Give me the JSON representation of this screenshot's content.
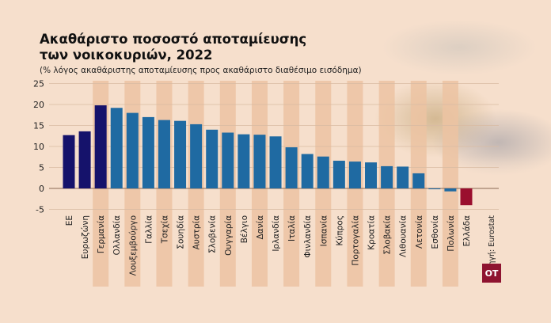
{
  "chart_data": {
    "type": "bar",
    "title": "Ακαθάριστο ποσοστό αποταμίευσης των νοικοκυριών, 2022",
    "title_lines": [
      "Ακαθάριστο ποσοστό αποταμίευσης",
      "των νοικοκυριών, 2022"
    ],
    "subtitle": "(% λόγος ακαθάριστης αποταμίευσης προς ακαθάριστο διαθέσιμο εισόδημα)",
    "xlabel": "",
    "ylabel": "",
    "ylim": [
      -5,
      25
    ],
    "yticks": [
      25,
      20,
      15,
      10,
      5,
      0,
      -5
    ],
    "grid": true,
    "categories": [
      "ΕΕ",
      "Ευρωζώνη",
      "Γερμανία",
      "Ολλανδία",
      "Λουξεμβούργο",
      "Γαλλία",
      "Τσεχία",
      "Σουηδία",
      "Αυστρία",
      "Σλοβενία",
      "Ουγγαρία",
      "Βέλγιο",
      "Δανία",
      "Ιρλανδία",
      "Ιταλία",
      "Φινλανδία",
      "Ισπανία",
      "Κύπρος",
      "Πορτογαλία",
      "Κροατία",
      "Σλοβακία",
      "Λιθουανία",
      "Λετονία",
      "Εσθονία",
      "Πολωνία",
      "Ελλάδα"
    ],
    "values": [
      12.7,
      13.6,
      19.8,
      19.2,
      18.0,
      17.0,
      16.3,
      16.1,
      15.3,
      14.0,
      13.3,
      12.9,
      12.8,
      12.4,
      9.8,
      8.2,
      7.6,
      6.6,
      6.4,
      6.2,
      5.3,
      5.2,
      3.6,
      -0.2,
      -0.7,
      -4.0
    ],
    "source": "Πηγή: Eurostat"
  },
  "colors": {
    "aggregate": "#15126b",
    "country": "#1f6aa2",
    "highlight": "#9a0f2e",
    "stripe": "#ecc3a2",
    "highlight_stripe": "#e3ad88"
  },
  "logo": "ΟΤ"
}
